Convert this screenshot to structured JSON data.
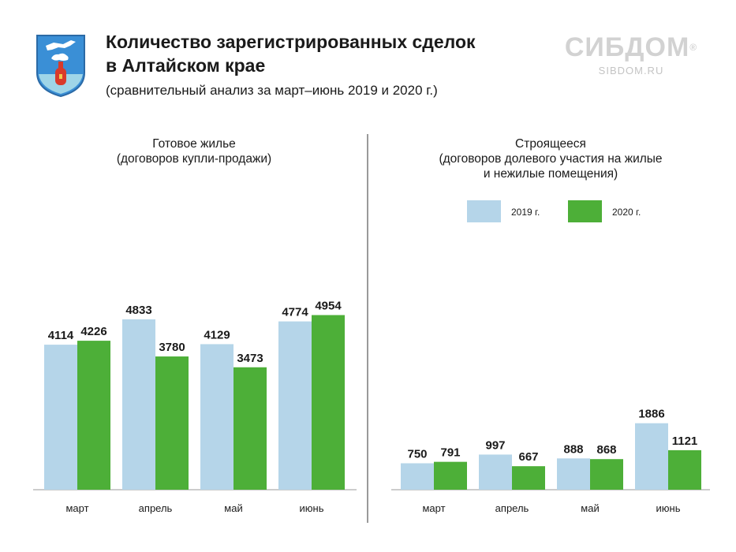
{
  "header": {
    "title_line1": "Количество зарегистрированных сделок",
    "title_line2": "в Алтайском крае",
    "subtitle": "(сравнительный анализ за март–июнь 2019 и 2020 г.)"
  },
  "brand": {
    "name": "СИБДОМ",
    "registered": "®",
    "site": "SIBDOM.RU"
  },
  "colors": {
    "series_2019": "#b5d5e9",
    "series_2020": "#4daf38",
    "divider": "#9a9a9a",
    "baseline": "#9a9a9a"
  },
  "legend": [
    {
      "label": "2019 г.",
      "color": "#b5d5e9"
    },
    {
      "label": "2020 г.",
      "color": "#4daf38"
    }
  ],
  "chart_data": [
    {
      "type": "bar",
      "title_line1": "Готовое жилье",
      "title_line2": "(договоров купли-продажи)",
      "categories": [
        "март",
        "апрель",
        "май",
        "июнь"
      ],
      "series": [
        {
          "name": "2019 г.",
          "values": [
            4114,
            4833,
            4129,
            4774
          ]
        },
        {
          "name": "2020 г.",
          "values": [
            4226,
            3780,
            3473,
            4954
          ]
        }
      ],
      "data_labels": true
    },
    {
      "type": "bar",
      "title_line1": "Строящееся",
      "title_line2": "(договоров долевого участия на жилые",
      "title_line3": "и нежилые помещения)",
      "categories": [
        "март",
        "апрель",
        "май",
        "июнь"
      ],
      "series": [
        {
          "name": "2019 г.",
          "values": [
            750,
            997,
            888,
            1886
          ]
        },
        {
          "name": "2020 г.",
          "values": [
            791,
            667,
            868,
            1121
          ]
        }
      ],
      "data_labels": true
    }
  ]
}
